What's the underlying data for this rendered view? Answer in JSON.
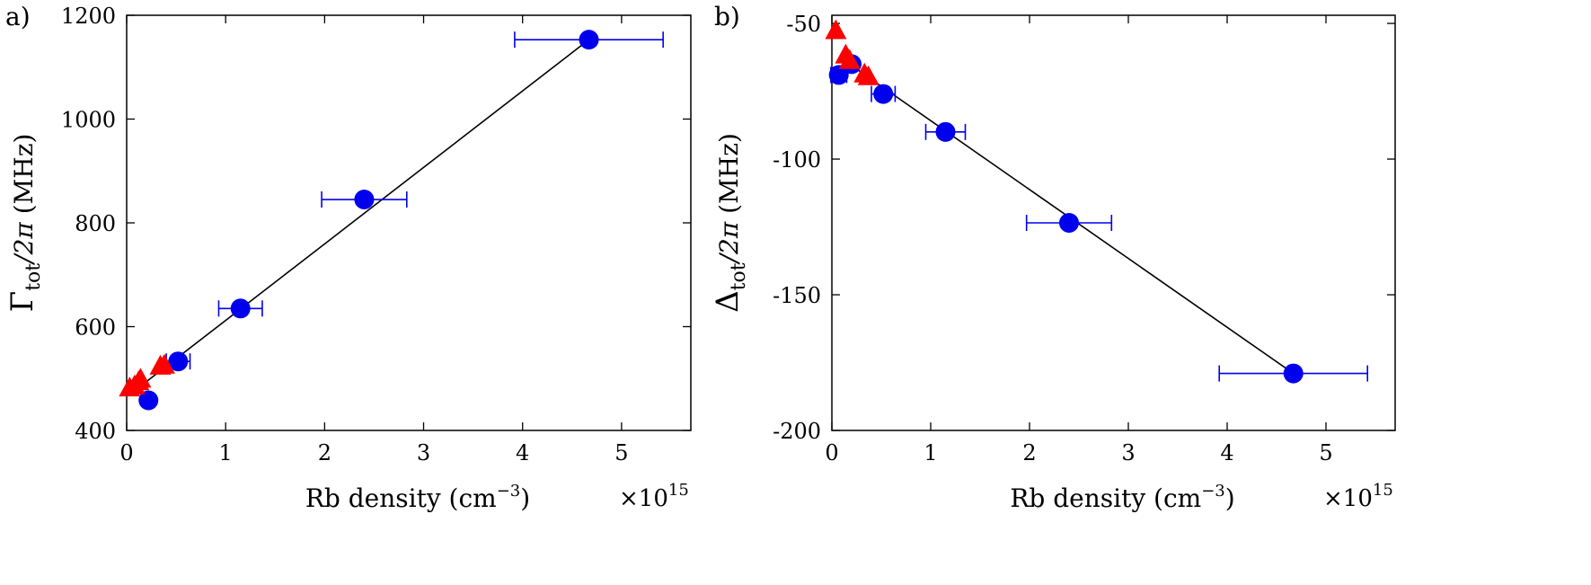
{
  "chart_data": [
    {
      "type": "scatter",
      "panel_label": "a)",
      "xlabel": "Rb density (cm",
      "xlabel_sup": "−3",
      "xlabel_end": ")",
      "ylabel_main": "Γ",
      "ylabel_sub": "tot",
      "ylabel_rest": "/2π",
      "ylabel_unit": "(MHz)",
      "x_multiplier": "×10",
      "x_multiplier_exp": "15",
      "xlim": [
        0,
        5.7
      ],
      "ylim": [
        400,
        1200
      ],
      "xticks": [
        0,
        1,
        2,
        3,
        4,
        5
      ],
      "xtick_labels": [
        "0",
        "1",
        "2",
        "3",
        "4",
        "5"
      ],
      "yticks": [
        400,
        600,
        800,
        1000,
        1200
      ],
      "ytick_labels": [
        "400",
        "600",
        "800",
        "1000",
        "1200"
      ],
      "grid": false,
      "fit_line": [
        [
          0.05,
          472
        ],
        [
          4.67,
          1153
        ]
      ],
      "series": [
        {
          "marker": "circle",
          "color": "#0000ee",
          "points": [
            {
              "x": 4.67,
              "y": 1153,
              "xerr": 0.75
            },
            {
              "x": 2.4,
              "y": 845,
              "xerr": 0.43
            },
            {
              "x": 1.15,
              "y": 635,
              "xerr": 0.22
            },
            {
              "x": 0.52,
              "y": 533,
              "xerr": 0.12
            },
            {
              "x": 0.22,
              "y": 458,
              "xerr": 0.05
            }
          ]
        },
        {
          "marker": "triangle",
          "color": "#ff0000",
          "points": [
            {
              "x": 0.03,
              "y": 480
            },
            {
              "x": 0.08,
              "y": 484
            },
            {
              "x": 0.12,
              "y": 492
            },
            {
              "x": 0.14,
              "y": 497
            },
            {
              "x": 0.34,
              "y": 522
            },
            {
              "x": 0.38,
              "y": 524
            }
          ]
        }
      ]
    },
    {
      "type": "scatter",
      "panel_label": "b)",
      "xlabel": "Rb density (cm",
      "xlabel_sup": "−3",
      "xlabel_end": ")",
      "ylabel_main": "Δ",
      "ylabel_sub": "tot",
      "ylabel_rest": "/2π",
      "ylabel_unit": "(MHz)",
      "x_multiplier": "×10",
      "x_multiplier_exp": "15",
      "xlim": [
        0,
        5.7
      ],
      "ylim": [
        -200,
        -47
      ],
      "xticks": [
        0,
        1,
        2,
        3,
        4,
        5
      ],
      "xtick_labels": [
        "0",
        "1",
        "2",
        "3",
        "4",
        "5"
      ],
      "yticks": [
        -200,
        -150,
        -100,
        -50
      ],
      "ytick_labels": [
        "-200",
        "-150",
        "-100",
        "-50"
      ],
      "grid": false,
      "fit_line": [
        [
          0.1,
          -63
        ],
        [
          4.67,
          -179
        ]
      ],
      "series": [
        {
          "marker": "circle",
          "color": "#0000ee",
          "points": [
            {
              "x": 4.67,
              "y": -179,
              "xerr": 0.75
            },
            {
              "x": 2.4,
              "y": -123.5,
              "xerr": 0.43
            },
            {
              "x": 1.15,
              "y": -90,
              "xerr": 0.2
            },
            {
              "x": 0.52,
              "y": -76,
              "xerr": 0.12
            },
            {
              "x": 0.2,
              "y": -65,
              "xerr": 0.05
            },
            {
              "x": 0.07,
              "y": -69,
              "xerr": 0.08
            }
          ]
        },
        {
          "marker": "triangle",
          "color": "#ff0000",
          "points": [
            {
              "x": 0.04,
              "y": -53
            },
            {
              "x": 0.14,
              "y": -62
            },
            {
              "x": 0.18,
              "y": -64
            },
            {
              "x": 0.33,
              "y": -69
            },
            {
              "x": 0.37,
              "y": -70
            }
          ]
        }
      ]
    }
  ]
}
